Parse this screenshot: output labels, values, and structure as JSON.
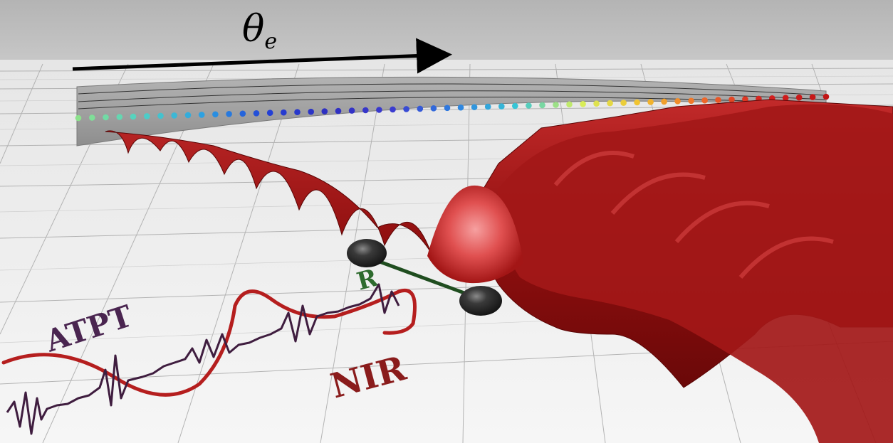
{
  "figure": {
    "axis_label": "θ",
    "axis_label_subscript": "e",
    "labels": {
      "atpt": "ATPT",
      "nir": "NIR",
      "bond": "R"
    },
    "colors": {
      "background": "#bdbdbd",
      "floor": "#f1f1f1",
      "grid": "#a9a9a9",
      "slab": "#9e9e9e",
      "wave_surface": "#9b1414",
      "wave_highlight": "#e06a6a",
      "nir_curve": "#b51e1e",
      "atpt_curve": "#3f1d3f",
      "atpt_text": "#4a2550",
      "nir_text": "#8a1c1c",
      "bond_text": "#2e6b2e",
      "atoms": "#2a2a2a",
      "arrow": "#000000"
    },
    "dot_palette": [
      "#8ce28c",
      "#4fd1c5",
      "#2b9fe3",
      "#2240d6",
      "#2f2fc0",
      "#3b3bd0",
      "#2e7fe0",
      "#36c6d6",
      "#d7f05a",
      "#f2c12e",
      "#ef6a2a",
      "#d62020",
      "#c11515"
    ]
  }
}
